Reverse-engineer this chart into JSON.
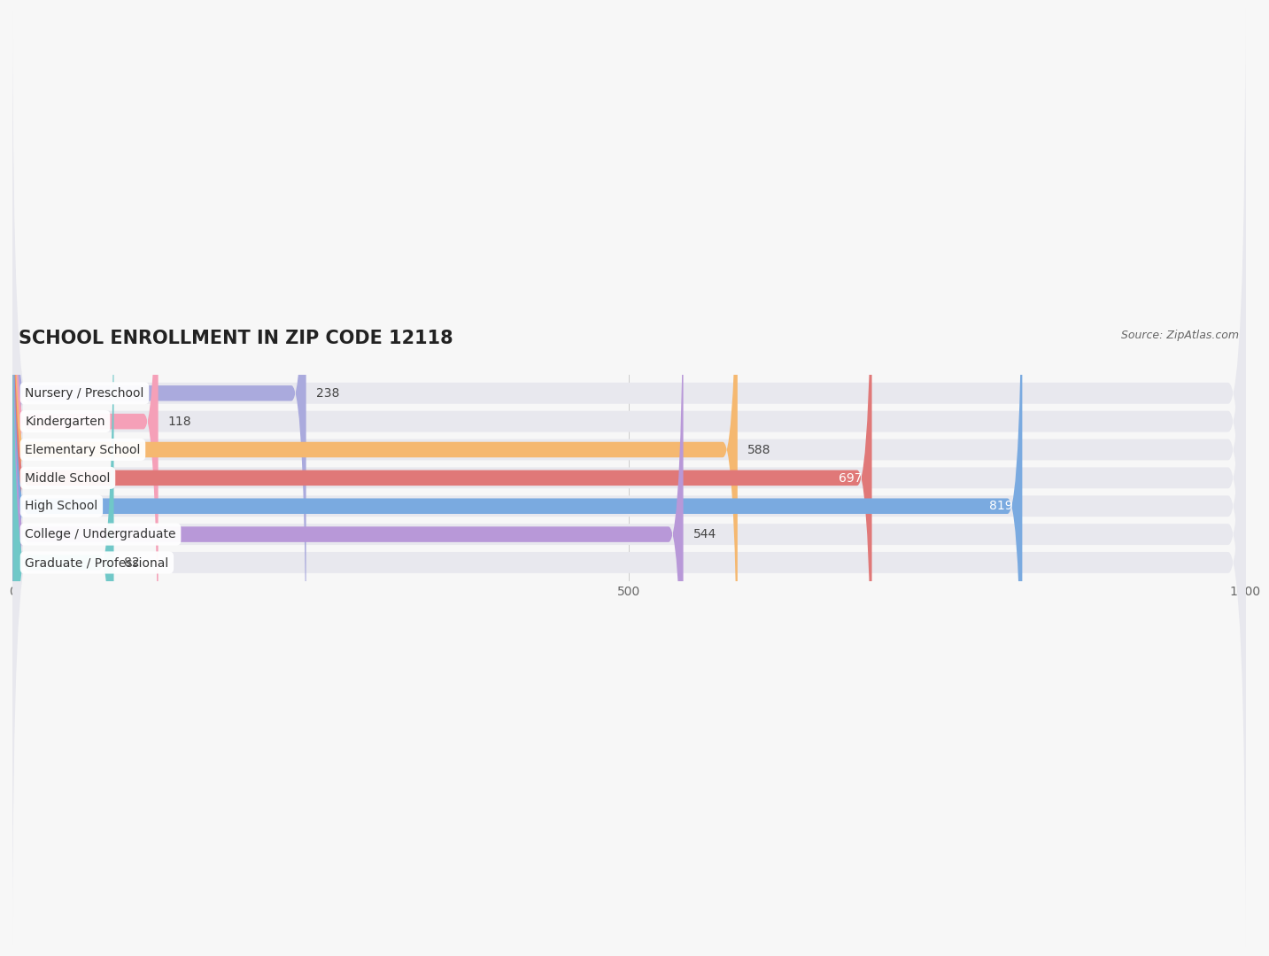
{
  "title": "SCHOOL ENROLLMENT IN ZIP CODE 12118",
  "source": "Source: ZipAtlas.com",
  "categories": [
    "Nursery / Preschool",
    "Kindergarten",
    "Elementary School",
    "Middle School",
    "High School",
    "College / Undergraduate",
    "Graduate / Professional"
  ],
  "values": [
    238,
    118,
    588,
    697,
    819,
    544,
    82
  ],
  "bar_colors": [
    "#aaaadd",
    "#f5a0b8",
    "#f5b870",
    "#e07878",
    "#7aaae0",
    "#b898d8",
    "#70c8c8"
  ],
  "bar_bg_color": "#e8e8ee",
  "value_colors": [
    "#444444",
    "#444444",
    "#444444",
    "#ffffff",
    "#ffffff",
    "#444444",
    "#444444"
  ],
  "xlim": [
    0,
    1000
  ],
  "xticks": [
    0,
    500,
    1000
  ],
  "title_fontsize": 15,
  "source_fontsize": 9,
  "tick_fontsize": 10,
  "bar_label_fontsize": 10,
  "category_fontsize": 10,
  "background_color": "#f7f7f7"
}
